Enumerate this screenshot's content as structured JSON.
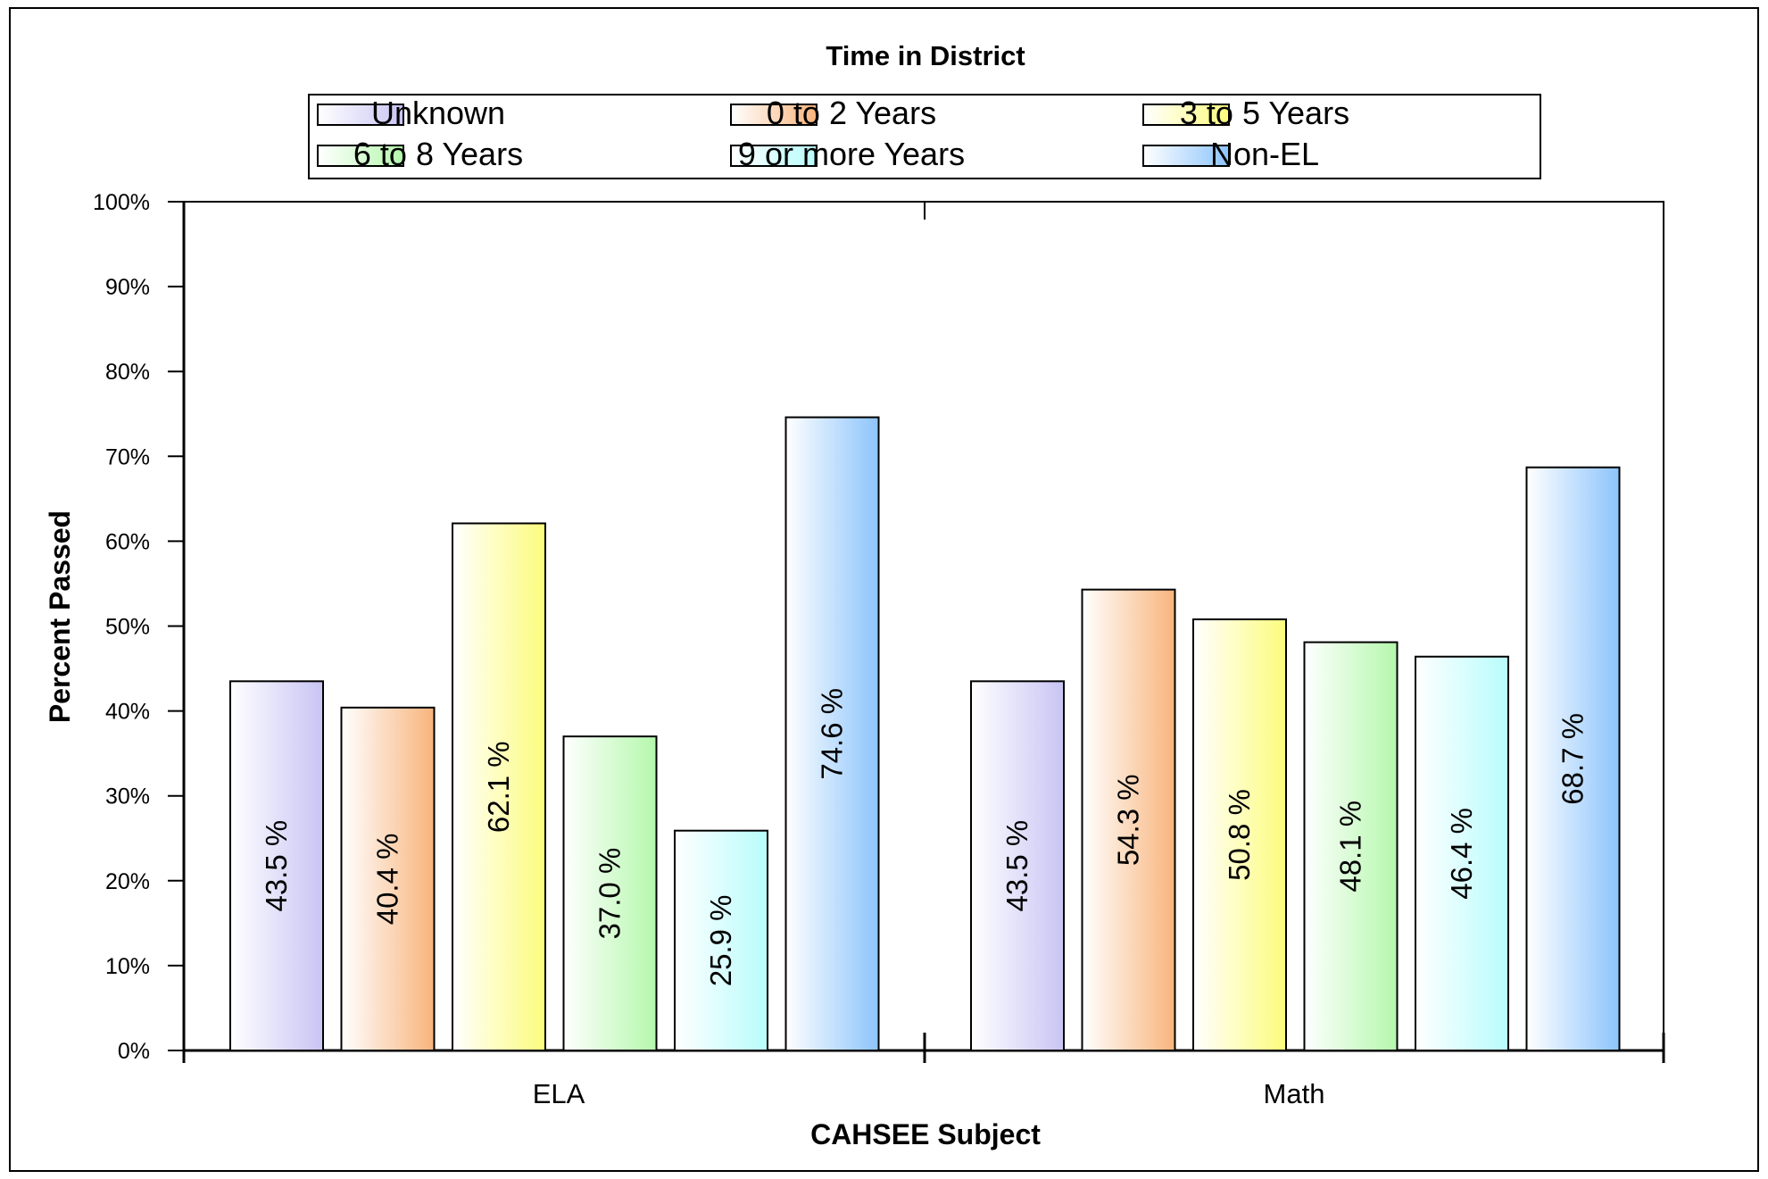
{
  "chart_data": {
    "type": "bar",
    "title": "Time in District",
    "xlabel": "CAHSEE Subject",
    "ylabel": "Percent Passed",
    "categories": [
      "ELA",
      "Math"
    ],
    "ylim": [
      0,
      100
    ],
    "yticks": [
      "0%",
      "10%",
      "20%",
      "30%",
      "40%",
      "50%",
      "60%",
      "70%",
      "80%",
      "90%",
      "100%"
    ],
    "legend_position": "top",
    "grid": false,
    "series": [
      {
        "name": "Unknown",
        "values": [
          43.5,
          43.5
        ],
        "labels": [
          "43.5 %",
          "43.5 %"
        ],
        "color": "#c8c4f4"
      },
      {
        "name": "0 to 2 Years",
        "values": [
          40.4,
          54.3
        ],
        "labels": [
          "40.4 %",
          "54.3 %"
        ],
        "color": "#f8b47c"
      },
      {
        "name": "3 to 5 Years",
        "values": [
          62.1,
          50.8
        ],
        "labels": [
          "62.1 %",
          "50.8 %"
        ],
        "color": "#fcfc7c"
      },
      {
        "name": "6 to 8 Years",
        "values": [
          37.0,
          48.1
        ],
        "labels": [
          "37.0 %",
          "48.1 %"
        ],
        "color": "#b4f8ac"
      },
      {
        "name": "9 or more Years",
        "values": [
          25.9,
          46.4
        ],
        "labels": [
          "25.9 %",
          "46.4 %"
        ],
        "color": "#b8fcfc"
      },
      {
        "name": "Non-EL",
        "values": [
          74.6,
          68.7
        ],
        "labels": [
          "74.6 %",
          "68.7 %"
        ],
        "color": "#8cc4fc"
      }
    ]
  }
}
